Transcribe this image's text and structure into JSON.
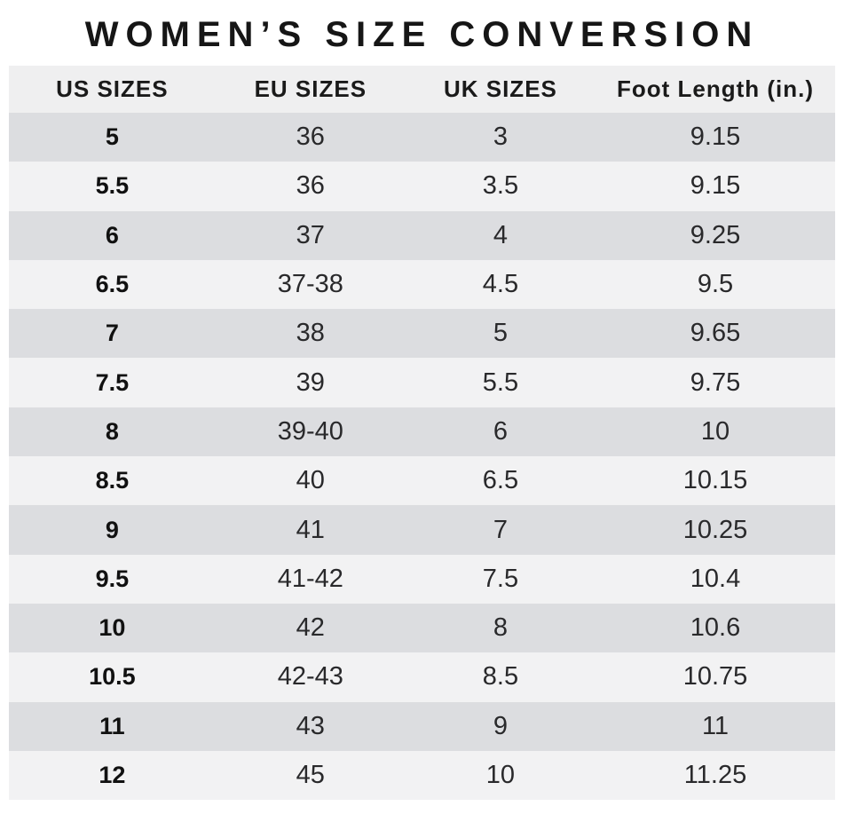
{
  "title": "WOMEN’S SIZE CONVERSION",
  "colors": {
    "row_dark": "#dcdde0",
    "row_light": "#f2f2f3",
    "header_bg": "#efeff0",
    "text": "#1a1a1a",
    "background": "#ffffff"
  },
  "chart_data": {
    "type": "table",
    "title": "WOMEN’S SIZE CONVERSION",
    "columns": [
      "US SIZES",
      "EU SIZES",
      "UK SIZES",
      "Foot Length (in.)"
    ],
    "rows": [
      [
        "5",
        "36",
        "3",
        "9.15"
      ],
      [
        "5.5",
        "36",
        "3.5",
        "9.15"
      ],
      [
        "6",
        "37",
        "4",
        "9.25"
      ],
      [
        "6.5",
        "37-38",
        "4.5",
        "9.5"
      ],
      [
        "7",
        "38",
        "5",
        "9.65"
      ],
      [
        "7.5",
        "39",
        "5.5",
        "9.75"
      ],
      [
        "8",
        "39-40",
        "6",
        "10"
      ],
      [
        "8.5",
        "40",
        "6.5",
        "10.15"
      ],
      [
        "9",
        "41",
        "7",
        "10.25"
      ],
      [
        "9.5",
        "41-42",
        "7.5",
        "10.4"
      ],
      [
        "10",
        "42",
        "8",
        "10.6"
      ],
      [
        "10.5",
        "42-43",
        "8.5",
        "10.75"
      ],
      [
        "11",
        "43",
        "9",
        "11"
      ],
      [
        "12",
        "45",
        "10",
        "11.25"
      ]
    ],
    "layout": {
      "striped": true,
      "stripe_order": [
        "dark",
        "light"
      ],
      "grid": false,
      "first_column_bold": true
    }
  }
}
